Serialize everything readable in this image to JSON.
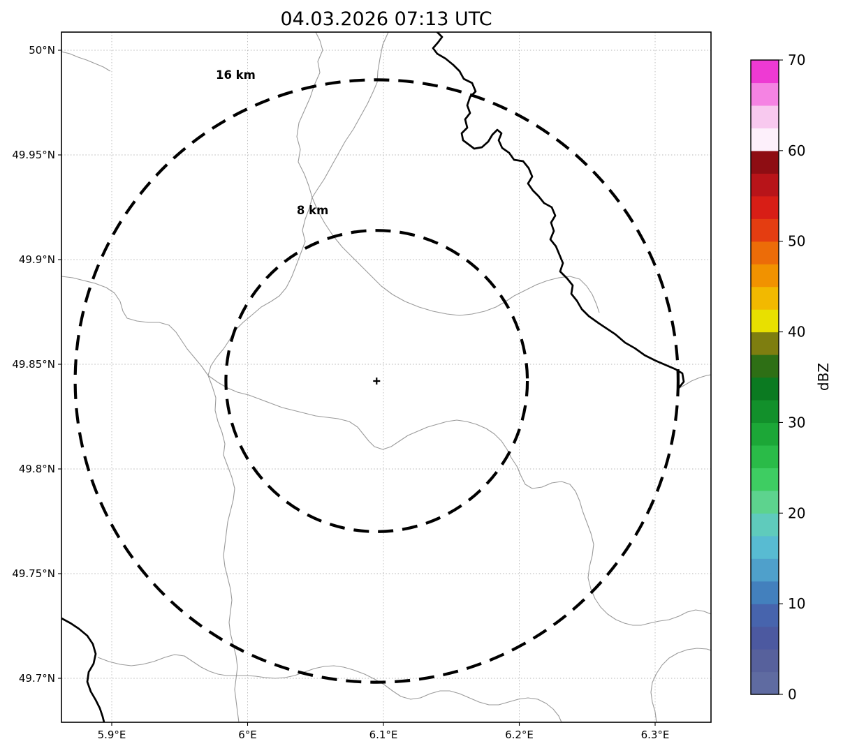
{
  "title": "04.03.2026 07:13 UTC",
  "map": {
    "x_axis": {
      "ticks": [
        {
          "value": 5.9,
          "label": "5.9°E"
        },
        {
          "value": 6.0,
          "label": "6°E"
        },
        {
          "value": 6.1,
          "label": "6.1°E"
        },
        {
          "value": 6.2,
          "label": "6.2°E"
        },
        {
          "value": 6.3,
          "label": "6.3°E"
        }
      ]
    },
    "y_axis": {
      "ticks": [
        {
          "value": 50.0,
          "label": "50°N"
        },
        {
          "value": 49.95,
          "label": "49.95°N"
        },
        {
          "value": 49.9,
          "label": "49.9°N"
        },
        {
          "value": 49.85,
          "label": "49.85°N"
        },
        {
          "value": 49.8,
          "label": "49.8°N"
        },
        {
          "value": 49.75,
          "label": "49.75°N"
        },
        {
          "value": 49.7,
          "label": "49.7°N"
        }
      ]
    },
    "center_marker": {
      "lon": 6.095,
      "lat": 49.842
    },
    "range_rings": [
      {
        "label": "8 km",
        "radius_km": 8
      },
      {
        "label": "16 km",
        "radius_km": 16
      }
    ]
  },
  "colorbar": {
    "label": "dBZ",
    "min": 0,
    "max": 70,
    "tick_values": [
      0,
      10,
      20,
      30,
      40,
      50,
      60,
      70
    ],
    "tick_labels": [
      "0",
      "10",
      "20",
      "30",
      "40",
      "50",
      "60",
      "70"
    ],
    "colors_bottom_to_top": [
      "#5f6ba1",
      "#57619c",
      "#4c59a0",
      "#4764ad",
      "#4380bd",
      "#4fa0cb",
      "#58bbd2",
      "#5fcbbc",
      "#5dd38e",
      "#3ecd62",
      "#2abb48",
      "#1ca737",
      "#12902b",
      "#0b7a21",
      "#2e6f15",
      "#7e7e10",
      "#e8e000",
      "#f2b900",
      "#f19200",
      "#ec6c08",
      "#e43d11",
      "#d81e16",
      "#b81419",
      "#8e0d13",
      "#fdf0fb",
      "#f8c9ef",
      "#f583e3",
      "#ee3ad3"
    ]
  }
}
